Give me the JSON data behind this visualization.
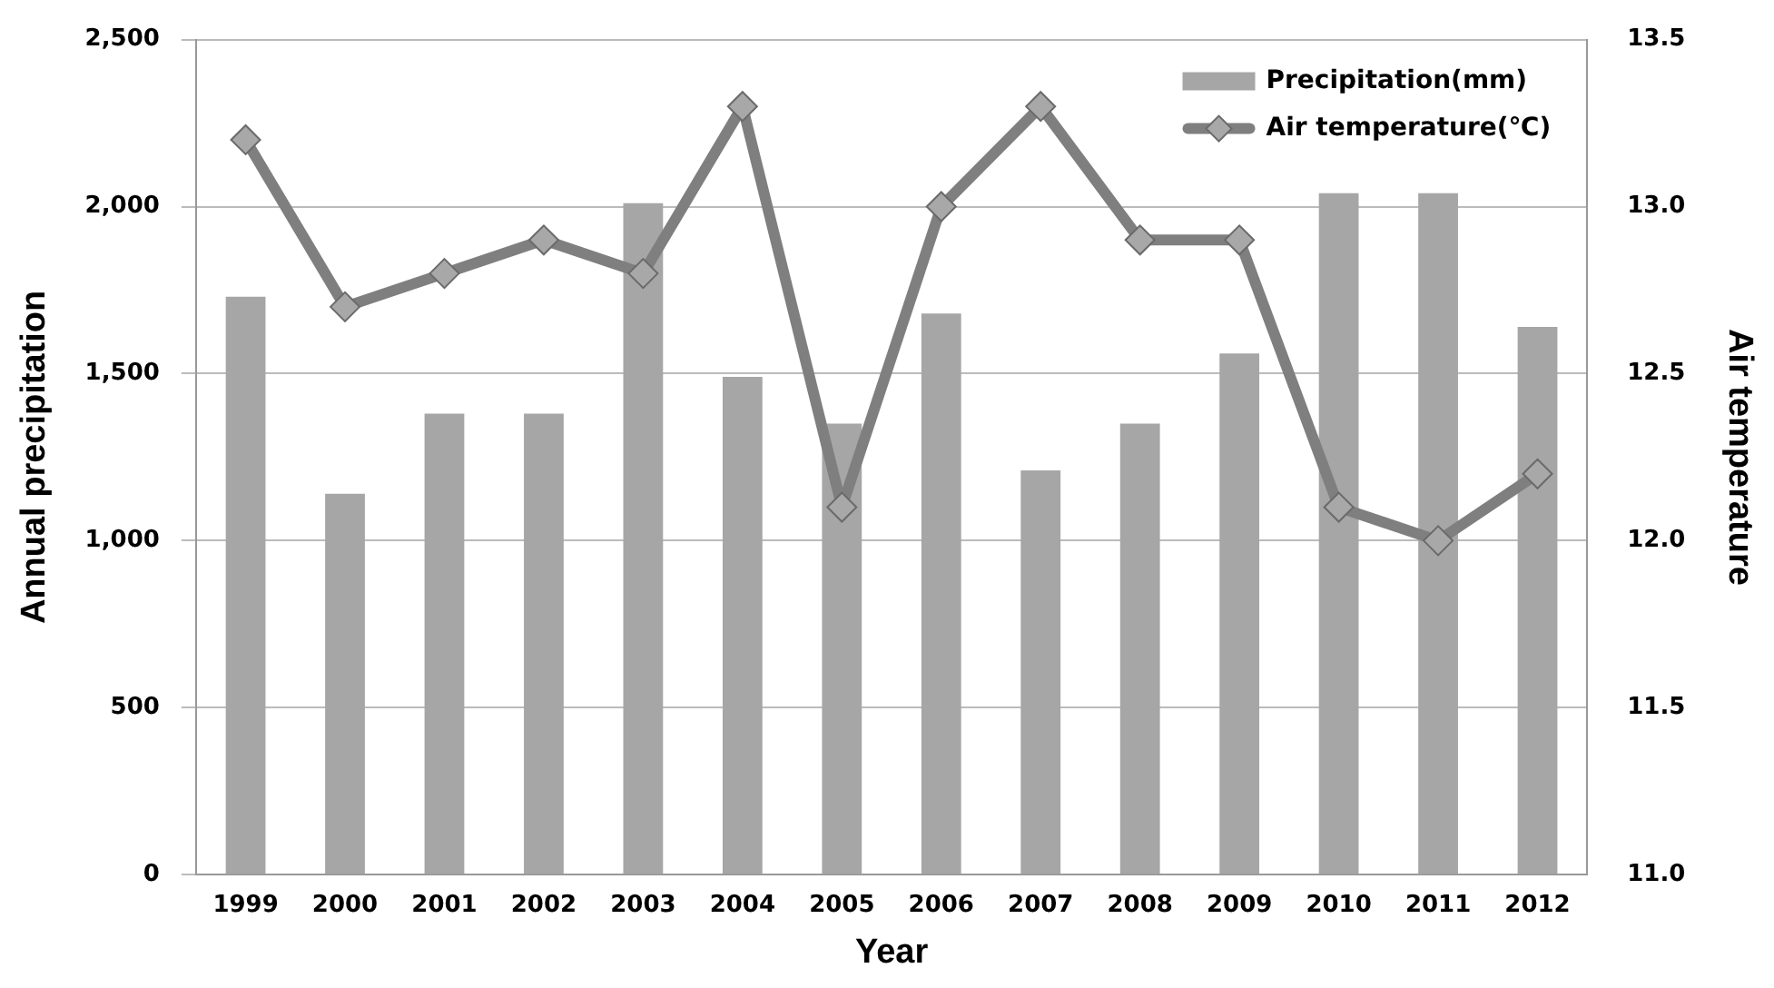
{
  "chart_data": {
    "type": "bar",
    "xlabel": "Year",
    "ylabel": "Annual precipitation",
    "y2label": "Air temperature",
    "categories": [
      "1999",
      "2000",
      "2001",
      "2002",
      "2003",
      "2004",
      "2005",
      "2006",
      "2007",
      "2008",
      "2009",
      "2010",
      "2011",
      "2012"
    ],
    "series": [
      {
        "name": "Precipitation(mm)",
        "color": "#a6a6a6",
        "values": [
          1730,
          1140,
          1380,
          1380,
          2010,
          1490,
          1350,
          1680,
          1210,
          1350,
          1560,
          2040,
          2040,
          1640
        ]
      },
      {
        "name": "Air temperature(℃)",
        "type": "line",
        "axis": "y2",
        "color": "#7f7f7f",
        "marker": "diamond",
        "values": [
          13.2,
          12.7,
          12.8,
          12.9,
          12.8,
          13.3,
          12.1,
          13.0,
          13.3,
          12.9,
          12.9,
          12.1,
          12.0,
          12.2
        ]
      }
    ],
    "ylim": [
      0,
      2500
    ],
    "yticks": [
      0,
      500,
      {
        "value": 1000,
        "label": "1,000"
      },
      {
        "value": 1500,
        "label": "1,500"
      },
      {
        "value": 2000,
        "label": "2,000"
      },
      {
        "value": 2500,
        "label": "2,500"
      }
    ],
    "y2lim": [
      11,
      13.5
    ],
    "y2ticks": [
      {
        "value": 11,
        "label": "11.0"
      },
      11.5,
      {
        "value": 12,
        "label": "12.0"
      },
      12.5,
      {
        "value": 13,
        "label": "13.0"
      },
      13.5
    ],
    "grid": "y",
    "legend": "top right"
  }
}
